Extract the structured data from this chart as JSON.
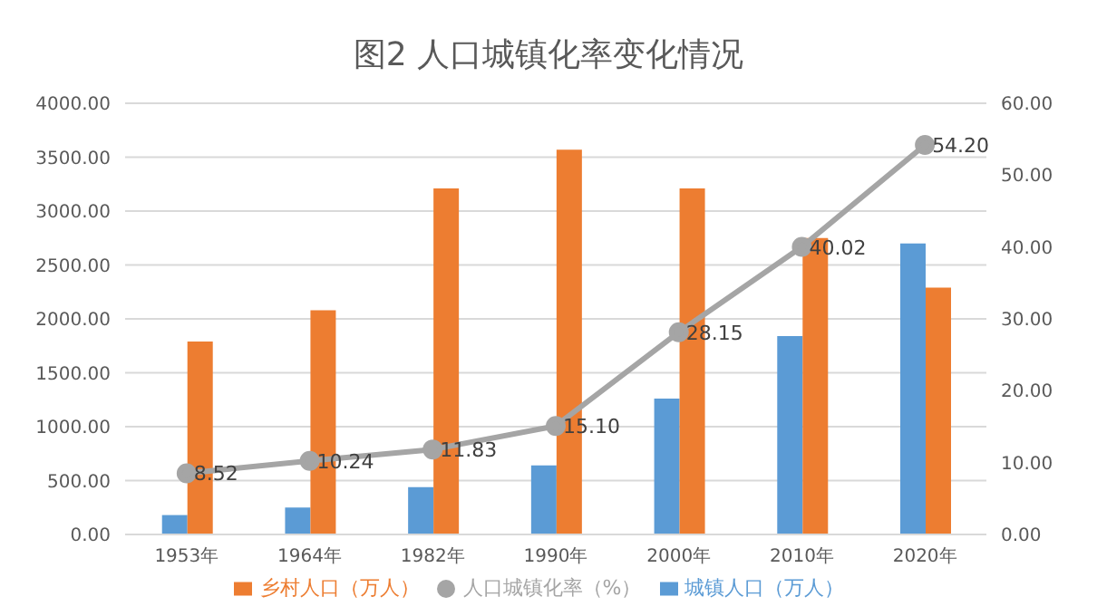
{
  "chart_data": {
    "type": "bar",
    "title": "图2  人口城镇化率变化情况",
    "categories": [
      "1953年",
      "1964年",
      "1982年",
      "1990年",
      "2000年",
      "2010年",
      "2020年"
    ],
    "series": [
      {
        "name": "城镇人口（万人）",
        "color": "#5b9bd5",
        "values": [
          180,
          250,
          440,
          640,
          1260,
          1840,
          2700
        ]
      },
      {
        "name": "乡村人口（万人）",
        "color": "#ed7d31",
        "values": [
          1790,
          2080,
          3210,
          3570,
          3210,
          2750,
          2290
        ]
      },
      {
        "name": "人口城镇化率（%）",
        "type": "line",
        "axis": "y2",
        "color": "#a5a5a5",
        "marker": "circle",
        "values": [
          8.52,
          10.24,
          11.83,
          15.1,
          28.15,
          40.02,
          54.2
        ],
        "value_labels": [
          "8.52",
          "10.24",
          "11.83",
          "15.10",
          "28.15",
          "40.02",
          "54.20"
        ]
      }
    ],
    "ylim": [
      0,
      4000
    ],
    "yticks": [
      {
        "value": 0,
        "label": "0.00"
      },
      {
        "value": 500,
        "label": "500.00"
      },
      {
        "value": 1000,
        "label": "1000.00"
      },
      {
        "value": 1500,
        "label": "1500.00"
      },
      {
        "value": 2000,
        "label": "2000.00"
      },
      {
        "value": 2500,
        "label": "2500.00"
      },
      {
        "value": 3000,
        "label": "3000.00"
      },
      {
        "value": 3500,
        "label": "3500.00"
      },
      {
        "value": 4000,
        "label": "4000.00"
      }
    ],
    "y2lim": [
      0,
      60
    ],
    "y2ticks": [
      {
        "value": 0,
        "label": "0.00"
      },
      {
        "value": 10,
        "label": "10.00"
      },
      {
        "value": 20,
        "label": "20.00"
      },
      {
        "value": 30,
        "label": "30.00"
      },
      {
        "value": 40,
        "label": "40.00"
      },
      {
        "value": 50,
        "label": "50.00"
      },
      {
        "value": 60,
        "label": "60.00"
      }
    ],
    "grid": "y",
    "legend": "bottom"
  }
}
